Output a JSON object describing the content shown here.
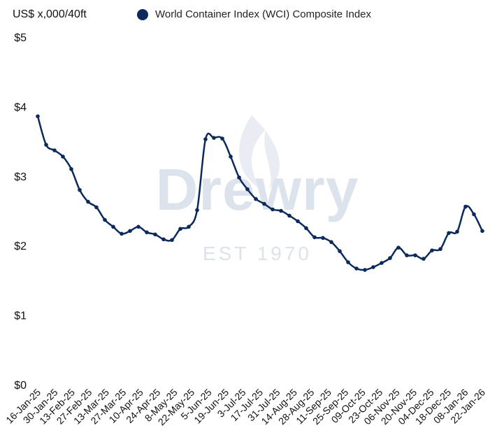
{
  "chart_data": {
    "type": "line",
    "y_unit_label": "US$ x,000/40ft",
    "ylim": [
      0,
      5
    ],
    "y_ticks": [
      {
        "value": 0,
        "label": "$0"
      },
      {
        "value": 1,
        "label": "$1"
      },
      {
        "value": 2,
        "label": "$2"
      },
      {
        "value": 3,
        "label": "$3"
      },
      {
        "value": 4,
        "label": "$4"
      },
      {
        "value": 5,
        "label": "$5"
      }
    ],
    "grid": false,
    "legend_placement": "top",
    "series_color": "#0b2a5b",
    "x_tick_labels": [
      "16-Jan-25",
      "30-Jan-25",
      "13-Feb-25",
      "27-Feb-25",
      "13-Mar-25",
      "27-Mar-25",
      "10-Apr-25",
      "24-Apr-25",
      "8-May-25",
      "22-May-25",
      "5-Jun-25",
      "19-Jun-25",
      "3-Jul-25",
      "17-Jul-25",
      "31-Jul-25",
      "14-Aug-25",
      "28-Aug-25",
      "11-Sep-25",
      "25-Sep-25",
      "09-Oct-25",
      "23-Oct-25",
      "06-Nov-25",
      "20-Nov-25",
      "04-Dec-25",
      "18-Dec-25",
      "08-Jan-26",
      "22-Jan-26"
    ],
    "series": [
      {
        "name": "World Container Index (WCI) Composite Index",
        "values": [
          3.86,
          3.45,
          3.37,
          3.28,
          3.1,
          2.8,
          2.63,
          2.55,
          2.37,
          2.27,
          2.17,
          2.21,
          2.27,
          2.19,
          2.16,
          2.09,
          2.08,
          2.24,
          2.27,
          2.51,
          3.53,
          3.55,
          3.54,
          3.28,
          2.98,
          2.81,
          2.67,
          2.6,
          2.52,
          2.5,
          2.43,
          2.35,
          2.25,
          2.12,
          2.11,
          2.05,
          1.92,
          1.76,
          1.67,
          1.65,
          1.69,
          1.75,
          1.82,
          1.97,
          1.86,
          1.86,
          1.81,
          1.93,
          1.95,
          2.18,
          2.2,
          2.56,
          2.45,
          2.21
        ]
      }
    ]
  },
  "watermark": {
    "brand": "Drewry",
    "est": "EST 1970"
  }
}
